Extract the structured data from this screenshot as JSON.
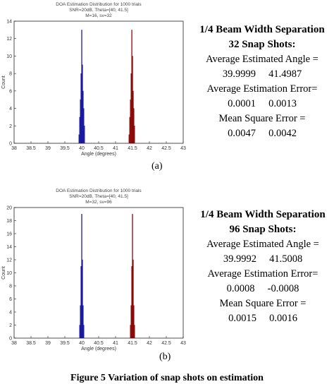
{
  "plots": [
    {
      "id": "a",
      "title_lines": [
        "DOA Estimation Distribution for 1000 trials",
        "SNR=20dB, Theta=[40, 41.5]",
        "M=16, sv=32"
      ],
      "ylabel": "Count",
      "xlabel": "Angle (degrees)",
      "xticks": [
        "38",
        "38.5",
        "39",
        "39.5",
        "40",
        "40.5",
        "41",
        "41.5",
        "42",
        "42.5",
        "43"
      ],
      "yticks": [
        "0",
        "2",
        "4",
        "6",
        "8",
        "10",
        "12",
        "14"
      ],
      "caption": "(a)"
    },
    {
      "id": "b",
      "title_lines": [
        "DOA Estimation Distribution for 1000 trials",
        "SNR=20dB, Theta=[40, 41.5]",
        "M=32, sv=96"
      ],
      "ylabel": "Count",
      "xlabel": "Angle (degrees)",
      "xticks": [
        "38",
        "38.5",
        "39",
        "39.5",
        "40",
        "40.5",
        "41",
        "41.5",
        "42",
        "42.5",
        "43"
      ],
      "yticks": [
        "0",
        "2",
        "4",
        "6",
        "8",
        "10",
        "12",
        "14",
        "16",
        "18",
        "20"
      ],
      "caption": "(b)"
    }
  ],
  "chart_data": [
    {
      "type": "bar",
      "title": "DOA Estimation Distribution for 1000 trials",
      "subtitle": "SNR=20dB, Theta=[40, 41.5] M=16, sv=32",
      "xlabel": "Angle (degrees)",
      "ylabel": "Count",
      "xlim": [
        38,
        43
      ],
      "ylim": [
        0,
        14
      ],
      "series": [
        {
          "color": "#1a1aa0",
          "x": [
            39.92,
            39.94,
            39.96,
            39.98,
            40.0,
            40.02,
            40.04,
            40.06,
            40.08
          ],
          "values": [
            1,
            3,
            5,
            8,
            13,
            9,
            6,
            4,
            2
          ]
        },
        {
          "color": "#8b0a0a",
          "x": [
            41.4,
            41.42,
            41.44,
            41.46,
            41.48,
            41.5,
            41.52,
            41.54,
            41.56
          ],
          "values": [
            1,
            3,
            5,
            8,
            13,
            10,
            6,
            4,
            2
          ]
        }
      ]
    },
    {
      "type": "bar",
      "title": "DOA Estimation Distribution for 1000 trials",
      "subtitle": "SNR=20dB, Theta=[40, 41.5] M=32, sv=96",
      "xlabel": "Angle (degrees)",
      "ylabel": "Count",
      "xlim": [
        38,
        43
      ],
      "ylim": [
        0,
        20
      ],
      "series": [
        {
          "color": "#1a1aa0",
          "x": [
            39.94,
            39.96,
            39.98,
            40.0,
            40.02,
            40.04,
            40.06
          ],
          "values": [
            2,
            5,
            11,
            19,
            12,
            5,
            2
          ]
        },
        {
          "color": "#8b0a0a",
          "x": [
            41.44,
            41.46,
            41.48,
            41.5,
            41.52,
            41.54,
            41.56
          ],
          "values": [
            2,
            5,
            11,
            19,
            12,
            5,
            2
          ]
        }
      ]
    }
  ],
  "info_a": {
    "heading1": "1/4 Beam Width Separation",
    "heading2": "32 Snap Shots:",
    "avg_angle_label": "Average Estimated Angle =",
    "avg_angle_values": "39.9999     41.4987",
    "avg_error_label": "Average Estimation Error=",
    "avg_error_values": "0.0001     0.0013",
    "mse_label": "Mean Square Error =",
    "mse_values": "0.0047     0.0042"
  },
  "info_b": {
    "heading1": "1/4 Beam Width Separation",
    "heading2": "96 Snap Shots:",
    "avg_angle_label": "Average Estimated Angle =",
    "avg_angle_values": "39.9992     41.5008",
    "avg_error_label": "Average Estimation Error=",
    "avg_error_values": "0.0008     -0.0008",
    "mse_label": "Mean Square Error =",
    "mse_values": "0.0015     0.0016"
  },
  "figure_caption": "Figure 5 Variation of snap shots on estimation"
}
